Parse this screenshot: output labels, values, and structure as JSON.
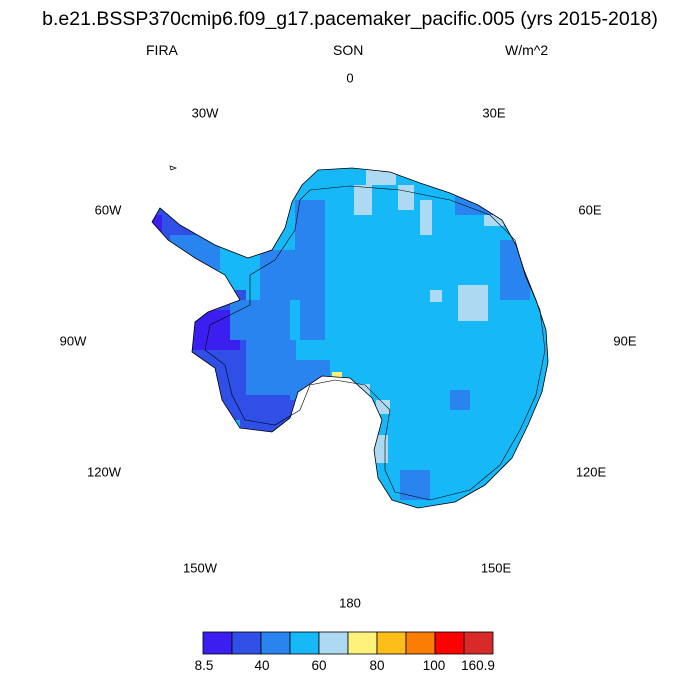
{
  "header": {
    "title": "b.e21.BSSP370cmip6.f09_g17.pacemaker_pacific.005 (yrs 2015-2018)",
    "variable": "FIRA",
    "season": "SON",
    "units": "W/m^2"
  },
  "longitude_labels": [
    "0",
    "30E",
    "60E",
    "90E",
    "120E",
    "150E",
    "180",
    "150W",
    "120W",
    "90W",
    "60W",
    "30W"
  ],
  "colorbar": {
    "colors": [
      "#3a1ff0",
      "#2f4fe6",
      "#2a84f0",
      "#16b8f7",
      "#aed9f2",
      "#fff27a",
      "#fdbe1a",
      "#fc7d04",
      "#fe0000",
      "#d92a2a"
    ],
    "labels": [
      "8.5",
      "40",
      "60",
      "80",
      "100",
      "160.9"
    ]
  },
  "chart_data": {
    "type": "heatmap",
    "projection": "south-polar-stereographic",
    "title": "b.e21.BSSP370cmip6.f09_g17.pacemaker_pacific.005 (yrs 2015-2018)",
    "variable": "FIRA",
    "season": "SON",
    "units": "W/m^2",
    "colorbar_range": [
      8.5,
      160.9
    ],
    "colorbar_labels": [
      "8.5",
      "40",
      "60",
      "80",
      "100",
      "160.9"
    ],
    "dominant_range": [
      50,
      60
    ]
  }
}
